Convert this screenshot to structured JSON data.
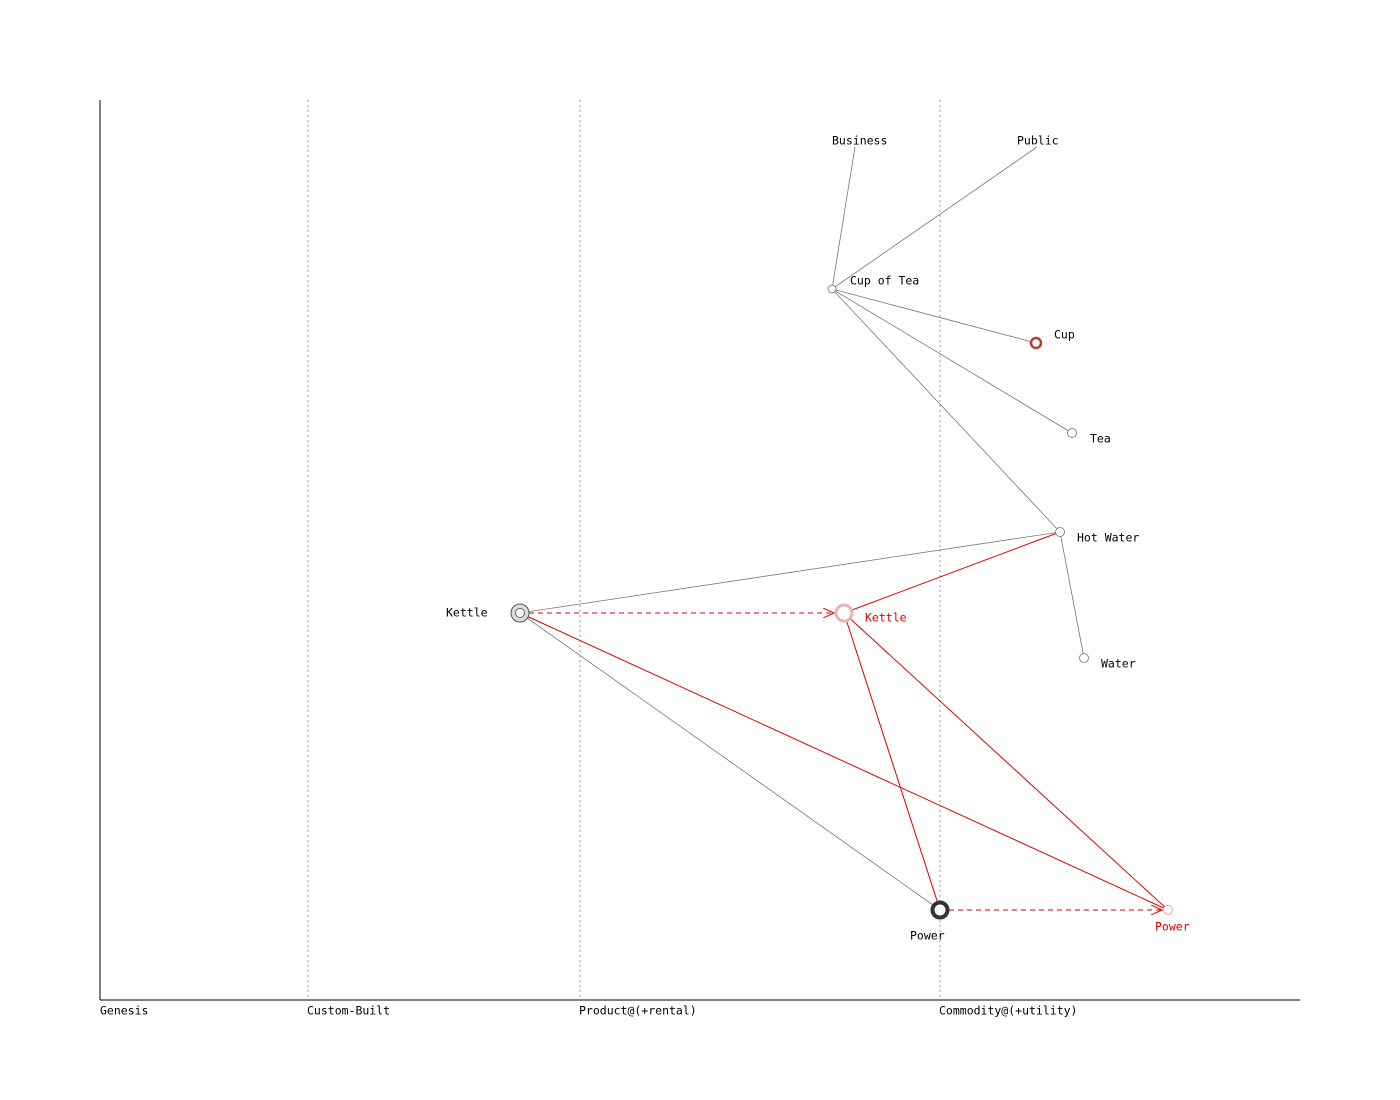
{
  "axis": {
    "labels": [
      "Genesis",
      "Custom-Built",
      "Product@(+rental)",
      "Commodity@(+utility)"
    ]
  },
  "nodes": [
    {
      "label": "Business"
    },
    {
      "label": "Public"
    },
    {
      "label": "Cup of Tea"
    },
    {
      "label": "Cup"
    },
    {
      "label": "Tea"
    },
    {
      "label": "Hot Water"
    },
    {
      "label": "Water"
    },
    {
      "label": "Kettle"
    },
    {
      "label": "Kettle"
    },
    {
      "label": "Power"
    },
    {
      "label": "Power"
    }
  ]
}
